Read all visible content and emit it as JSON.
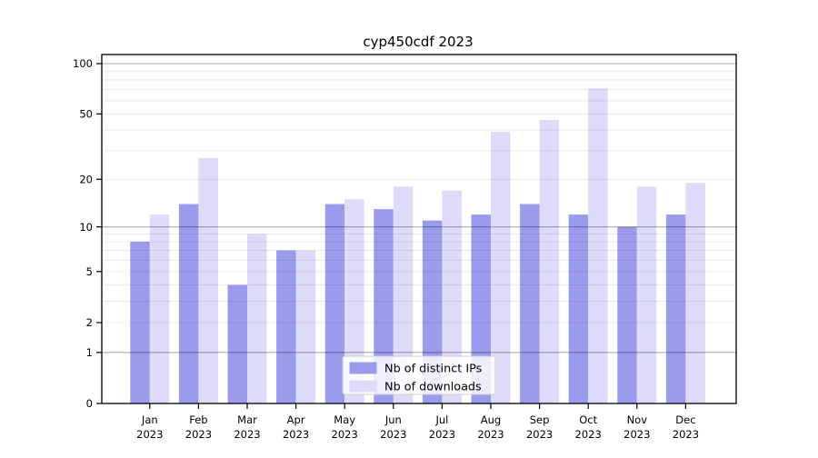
{
  "chart_data": {
    "type": "bar",
    "title": "cyp450cdf 2023",
    "categories": [
      "Jan",
      "Feb",
      "Mar",
      "Apr",
      "May",
      "Jun",
      "Jul",
      "Aug",
      "Sep",
      "Oct",
      "Nov",
      "Dec"
    ],
    "x_tick_second_line": "2023",
    "series": [
      {
        "name": "Nb of distinct IPs",
        "color": "#9b9bee",
        "values": [
          8,
          14,
          4,
          7,
          14,
          13,
          11,
          12,
          14,
          12,
          10,
          12
        ]
      },
      {
        "name": "Nb of downloads",
        "color": "#dcdcfa",
        "values": [
          12,
          27,
          9,
          7,
          15,
          18,
          17,
          39,
          46,
          71,
          18,
          19
        ]
      }
    ],
    "yscale": "log1p",
    "ylim": [
      0,
      113
    ],
    "yticks": [
      "0",
      "1",
      "2",
      "5",
      "10",
      "20",
      "50",
      "100"
    ],
    "ytick_values": [
      0,
      1,
      2,
      5,
      10,
      20,
      50,
      100
    ],
    "grid": {
      "on": true,
      "major_values": [
        1,
        10,
        100
      ],
      "minor_values": [
        2,
        3,
        4,
        5,
        6,
        7,
        8,
        9,
        20,
        30,
        40,
        50,
        60,
        70,
        80,
        90,
        110
      ],
      "major_color": "rgba(0,0,0,0.32)",
      "minor_color": "rgba(0,0,0,0.09)"
    },
    "legend": {
      "position": "lower center"
    },
    "colors": {
      "background": "#ffffff",
      "axis": "#000000"
    }
  }
}
